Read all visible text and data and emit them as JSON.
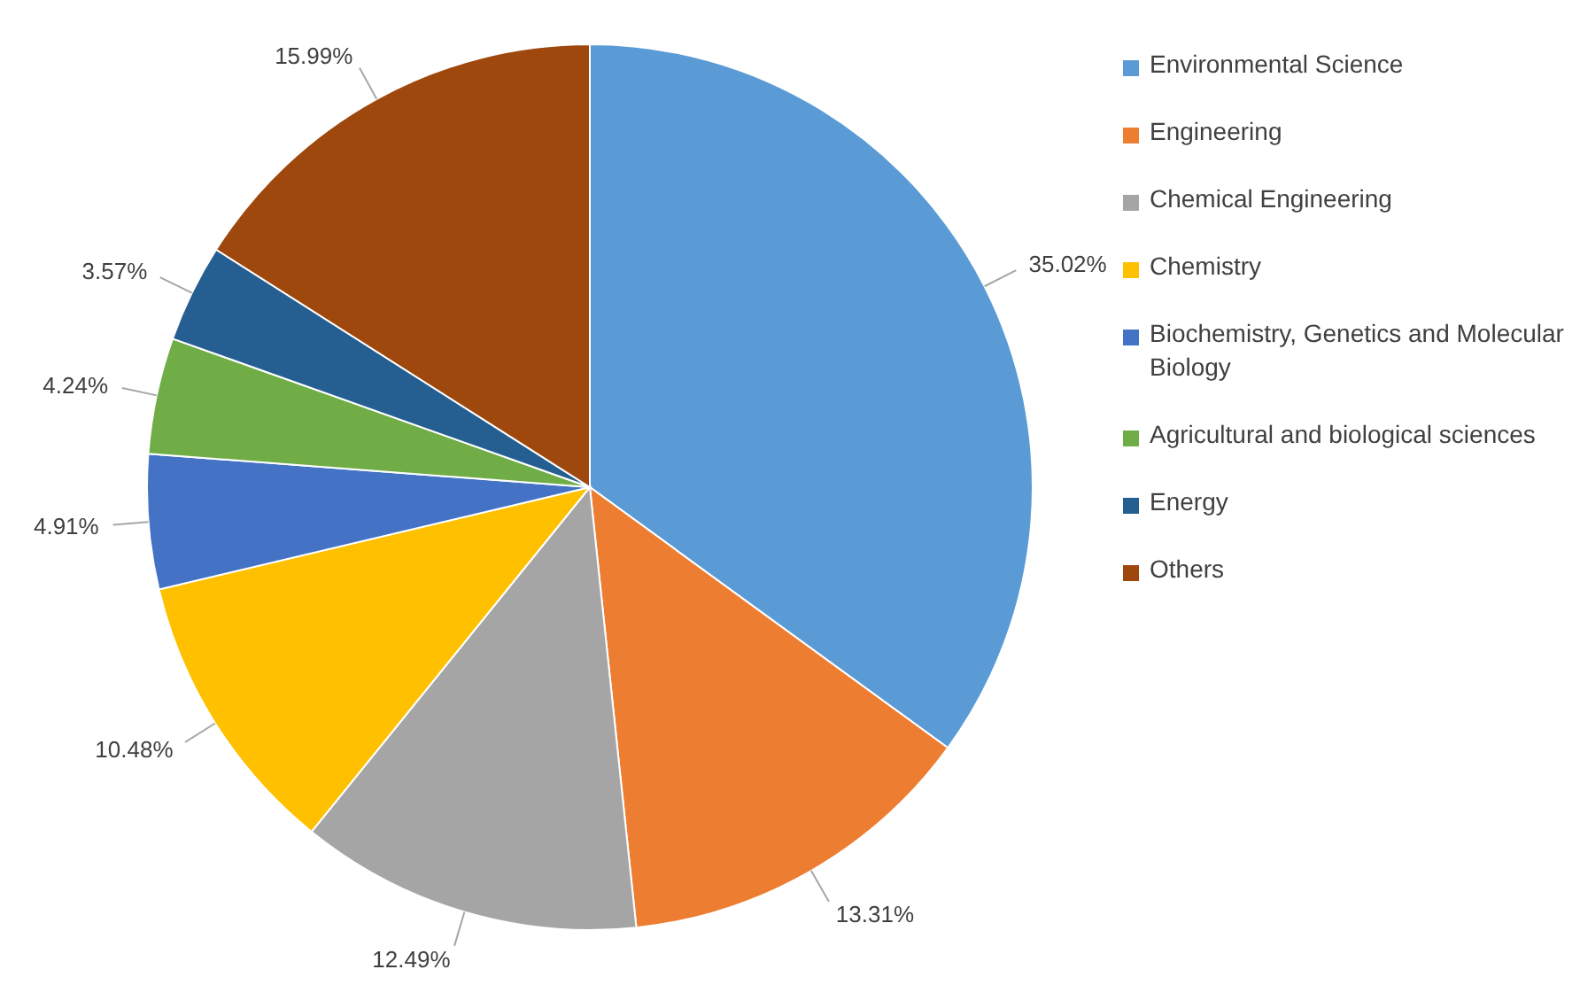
{
  "chart_data": {
    "type": "pie",
    "categories": [
      "Environmental Science",
      "Engineering",
      "Chemical Engineering",
      "Chemistry",
      "Biochemistry, Genetics and Molecular Biology",
      "Agricultural and biological sciences",
      "Energy",
      "Others"
    ],
    "values": [
      35.02,
      13.31,
      12.49,
      10.48,
      4.91,
      4.24,
      3.57,
      15.99
    ],
    "value_labels": [
      "35.02%",
      "13.31%",
      "12.49%",
      "10.48%",
      "4.91%",
      "4.24%",
      "3.57%",
      "15.99%"
    ],
    "colors": [
      "#5b9bd5",
      "#ed7d31",
      "#a5a5a5",
      "#ffc000",
      "#4472c4",
      "#70ad47",
      "#255e91",
      "#9e480e"
    ],
    "legend": "right"
  }
}
